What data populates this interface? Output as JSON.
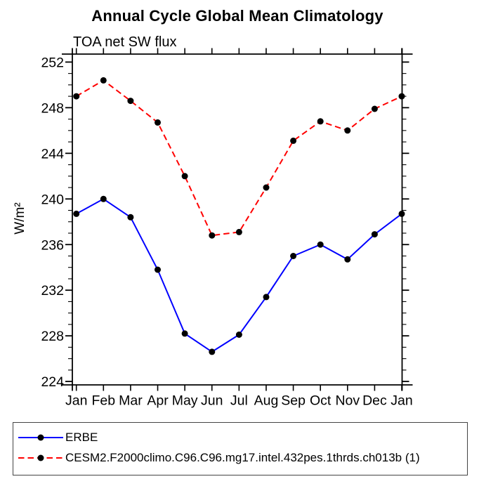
{
  "title": "Annual Cycle Global Mean Climatology",
  "subtitle": "TOA net SW flux",
  "y_axis_label": "W/m²",
  "chart_data": {
    "type": "line",
    "categories": [
      "Jan",
      "Feb",
      "Mar",
      "Apr",
      "May",
      "Jun",
      "Jul",
      "Aug",
      "Sep",
      "Oct",
      "Nov",
      "Dec",
      "Jan"
    ],
    "series": [
      {
        "id": "erbe",
        "name": "ERBE",
        "color": "#0000ff",
        "style": "solid",
        "marker": "filled-circle",
        "marker_color": "#000000",
        "values": [
          238.7,
          240.0,
          238.4,
          233.8,
          228.2,
          226.6,
          228.1,
          231.4,
          235.0,
          236.0,
          234.7,
          236.9,
          238.7
        ]
      },
      {
        "id": "cesm2",
        "name": "CESM2.F2000climo.C96.C96.mg17.intel.432pes.1thrds.ch013b (1)",
        "color": "#ff0000",
        "style": "dashed",
        "marker": "filled-circle",
        "marker_color": "#000000",
        "values": [
          249.0,
          250.4,
          248.6,
          246.7,
          242.0,
          236.8,
          237.1,
          241.0,
          245.1,
          246.8,
          246.0,
          247.9,
          249.0
        ]
      }
    ],
    "xlabel": "",
    "ylabel": "W/m²",
    "yticks": [
      224,
      228,
      232,
      236,
      240,
      244,
      248,
      252
    ],
    "y_minor_step": 1,
    "ylim": [
      223.7,
      252.7
    ],
    "grid": false,
    "legend_position": "bottom-left-box",
    "axis_color": "#000000",
    "background_color": "#ffffff"
  }
}
